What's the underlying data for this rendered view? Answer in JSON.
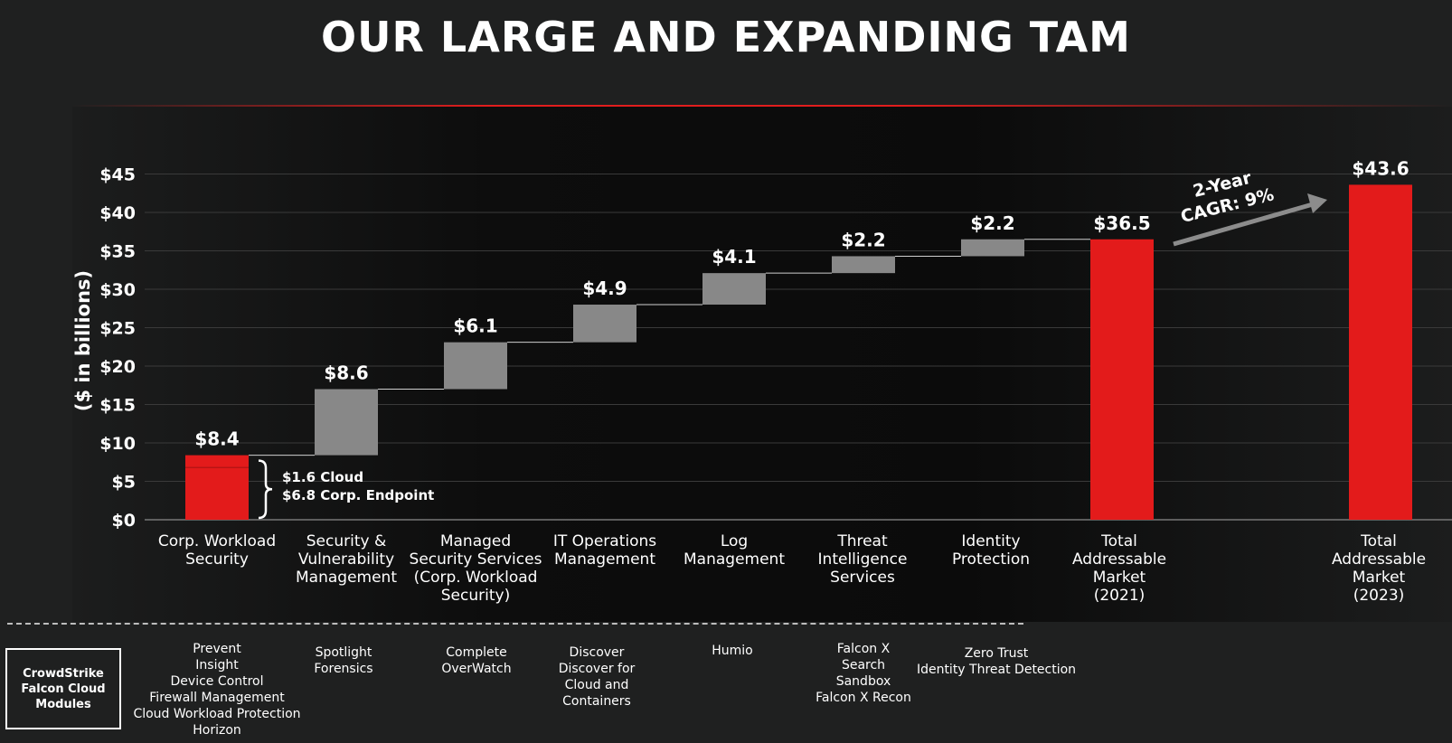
{
  "title": "OUR LARGE AND EXPANDING TAM",
  "colors": {
    "red": "#e31b1b",
    "gray": "#888888",
    "background": "#1f2020"
  },
  "chart_data": {
    "type": "bar",
    "subtype": "waterfall",
    "ylabel": "($ in billions)",
    "ylim": [
      0,
      45
    ],
    "yticks": [
      "$0",
      "$5",
      "$10",
      "$15",
      "$20",
      "$25",
      "$30",
      "$35",
      "$40",
      "$45"
    ],
    "grid": true,
    "categories": [
      "Corp. Workload Security",
      "Security & Vulnerability Management",
      "Managed Security Services (Corp. Workload Security)",
      "IT Operations Management",
      "Log Management",
      "Threat Intelligence Services",
      "Identity Protection",
      "Total Addressable Market (2021)",
      "Total Addressable Market (2023)"
    ],
    "values": [
      8.4,
      8.6,
      6.1,
      4.9,
      4.1,
      2.2,
      2.2,
      36.5,
      43.6
    ],
    "value_labels": [
      "$8.4",
      "$8.6",
      "$6.1",
      "$4.9",
      "$4.1",
      "$2.2",
      "$2.2",
      "$36.5",
      "$43.6"
    ],
    "kinds": [
      "total",
      "step",
      "step",
      "step",
      "step",
      "step",
      "step",
      "total",
      "total"
    ],
    "breakdown": {
      "cloud": 1.6,
      "corp_endpoint": 6.8
    },
    "annotation": "2-Year CAGR: 9%"
  },
  "breakdown_labels": [
    "$1.6 Cloud",
    "$6.8 Corp. Endpoint"
  ],
  "cagr_label": "2-Year\nCAGR: 9%",
  "category_labels": [
    "Corp. Workload\nSecurity",
    "Security &\nVulnerability\nManagement",
    "Managed\nSecurity Services\n(Corp. Workload\nSecurity)",
    "IT Operations\nManagement",
    "Log\nManagement",
    "Threat\nIntelligence\nServices",
    "Identity\nProtection",
    "Total\nAddressable\nMarket\n(2021)",
    "Total\nAddressable\nMarket\n(2023)"
  ],
  "modules_title": "CrowdStrike\nFalcon Cloud\nModules",
  "modules": [
    "Prevent\nInsight\nDevice Control\nFirewall Management\nCloud Workload Protection\nHorizon",
    "Spotlight\nForensics",
    "Complete\nOverWatch",
    "Discover\nDiscover for\nCloud and\nContainers",
    "Humio",
    "Falcon X\nSearch\nSandbox\nFalcon X Recon",
    "Zero Trust\nIdentity Threat Detection"
  ]
}
